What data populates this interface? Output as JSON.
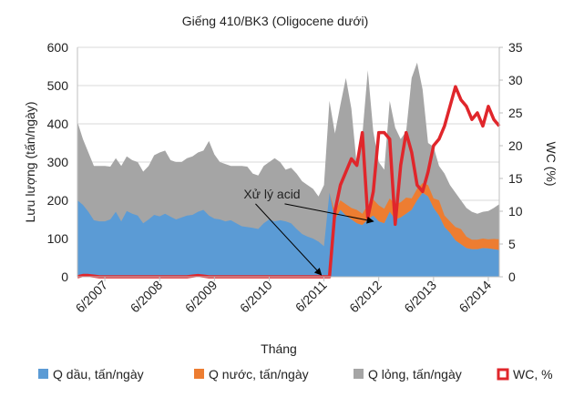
{
  "chart_data": {
    "type": "area",
    "title": "Giếng 410/BK3 (Oligocene dưới)",
    "xlabel": "Tháng",
    "ylabel": "Lưu lượng (tấn/ngày)",
    "y2label": "WC (%)",
    "ylim": [
      0,
      600
    ],
    "y2lim": [
      0,
      35
    ],
    "yticks": [
      0,
      100,
      200,
      300,
      400,
      500,
      600
    ],
    "y2ticks": [
      0,
      5,
      10,
      15,
      20,
      25,
      30,
      35
    ],
    "xlim": [
      2007.0,
      2014.7
    ],
    "xtick_positions": [
      2007.5,
      2008.5,
      2009.5,
      2010.5,
      2011.5,
      2012.5,
      2013.5,
      2014.5
    ],
    "xtick_labels": [
      "6/2007",
      "6/2008",
      "6/2009",
      "6/2010",
      "6/2011",
      "6/2012",
      "6/2013",
      "6/2014"
    ],
    "grid": true,
    "legend_position": "bottom",
    "x": [
      2007.0,
      2007.1,
      2007.2,
      2007.3,
      2007.4,
      2007.5,
      2007.6,
      2007.7,
      2007.8,
      2007.9,
      2008.0,
      2008.1,
      2008.2,
      2008.3,
      2008.4,
      2008.5,
      2008.6,
      2008.7,
      2008.8,
      2008.9,
      2009.0,
      2009.1,
      2009.2,
      2009.3,
      2009.4,
      2009.5,
      2009.6,
      2009.7,
      2009.8,
      2009.9,
      2010.0,
      2010.1,
      2010.2,
      2010.3,
      2010.4,
      2010.5,
      2010.6,
      2010.7,
      2010.8,
      2010.9,
      2011.0,
      2011.1,
      2011.2,
      2011.3,
      2011.4,
      2011.5,
      2011.6,
      2011.7,
      2011.8,
      2011.9,
      2012.0,
      2012.1,
      2012.2,
      2012.3,
      2012.4,
      2012.5,
      2012.6,
      2012.7,
      2012.8,
      2012.9,
      2013.0,
      2013.1,
      2013.2,
      2013.3,
      2013.4,
      2013.5,
      2013.6,
      2013.7,
      2013.8,
      2013.9,
      2014.0,
      2014.1,
      2014.2,
      2014.3,
      2014.4,
      2014.5,
      2014.6,
      2014.7
    ],
    "series": [
      {
        "name": "Q dầu, tấn/ngày",
        "kind": "area",
        "axis": "left",
        "color": "#5b9bd5",
        "values": [
          200,
          188,
          170,
          148,
          145,
          145,
          150,
          170,
          145,
          172,
          165,
          160,
          140,
          150,
          162,
          158,
          165,
          157,
          150,
          155,
          160,
          162,
          170,
          175,
          160,
          152,
          150,
          145,
          148,
          140,
          132,
          130,
          128,
          125,
          140,
          150,
          145,
          148,
          145,
          140,
          125,
          112,
          105,
          100,
          92,
          80,
          220,
          150,
          175,
          160,
          150,
          140,
          135,
          150,
          160,
          145,
          140,
          170,
          150,
          155,
          165,
          175,
          200,
          220,
          210,
          180,
          160,
          130,
          115,
          95,
          85,
          75,
          72,
          72,
          75,
          74,
          72,
          70
        ]
      },
      {
        "name": "Q nước, tấn/ngày",
        "kind": "area",
        "axis": "left",
        "color": "#ed7d31",
        "values": [
          0,
          0,
          0,
          0,
          0,
          0,
          0,
          0,
          0,
          0,
          0,
          0,
          0,
          0,
          0,
          0,
          0,
          0,
          0,
          0,
          0,
          0,
          0,
          0,
          0,
          0,
          0,
          0,
          0,
          0,
          0,
          0,
          0,
          0,
          0,
          0,
          0,
          0,
          0,
          0,
          0,
          0,
          0,
          0,
          0,
          0,
          0,
          20,
          25,
          30,
          30,
          35,
          30,
          38,
          42,
          42,
          38,
          35,
          40,
          40,
          42,
          30,
          30,
          25,
          30,
          25,
          40,
          30,
          30,
          35,
          40,
          30,
          25,
          25,
          25,
          24,
          27,
          28
        ]
      },
      {
        "name": "Q lỏng, tấn/ngày",
        "kind": "area",
        "axis": "left",
        "color": "#a5a5a5",
        "values": [
          405,
          360,
          325,
          290,
          290,
          290,
          288,
          310,
          290,
          315,
          305,
          300,
          275,
          290,
          318,
          325,
          330,
          305,
          300,
          300,
          310,
          315,
          325,
          330,
          355,
          320,
          300,
          295,
          290,
          290,
          290,
          288,
          270,
          265,
          290,
          300,
          310,
          300,
          280,
          285,
          270,
          250,
          240,
          230,
          210,
          240,
          460,
          375,
          450,
          520,
          440,
          290,
          370,
          540,
          380,
          300,
          280,
          460,
          390,
          360,
          380,
          520,
          560,
          490,
          350,
          340,
          290,
          270,
          240,
          220,
          200,
          180,
          170,
          165,
          170,
          172,
          180,
          190
        ]
      },
      {
        "name": "WC, %",
        "kind": "line",
        "axis": "right",
        "color": "#e0262b",
        "values": [
          0,
          0.2,
          0.2,
          0.1,
          0,
          0,
          0,
          0,
          0,
          0,
          0,
          0,
          0,
          0,
          0,
          0,
          0,
          0,
          0,
          0,
          0,
          0.1,
          0.2,
          0.1,
          0,
          0,
          0,
          0,
          0,
          0,
          0,
          0,
          0,
          0,
          0,
          0,
          0,
          0,
          0,
          0,
          0,
          0,
          0,
          0,
          0,
          0,
          0,
          10,
          14,
          16,
          18,
          17,
          22,
          9,
          13,
          22,
          22,
          21,
          8,
          17,
          22,
          19,
          14,
          13,
          16,
          20,
          21,
          23,
          26,
          29,
          27,
          26,
          24,
          25,
          23,
          26,
          24,
          23
        ]
      }
    ],
    "annotations": [
      {
        "text": "Xử lý acid",
        "text_x": 2010.55,
        "text_y": 205,
        "arrows_to": [
          [
            2011.45,
            5
          ],
          [
            2012.4,
            145
          ]
        ]
      }
    ]
  }
}
